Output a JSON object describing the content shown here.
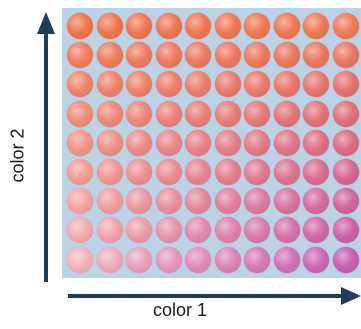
{
  "axes": {
    "x_label": "color 1",
    "y_label": "color 2"
  },
  "grid": {
    "rows": 9,
    "cols": 10
  },
  "colors": {
    "background": "#bcd3e6",
    "axis": "#1f3c5a",
    "top_left": "#f0764f",
    "top_right": "#f07a55",
    "bottom_left": "#f5b4bd",
    "bottom_right": "#c85fb5"
  }
}
